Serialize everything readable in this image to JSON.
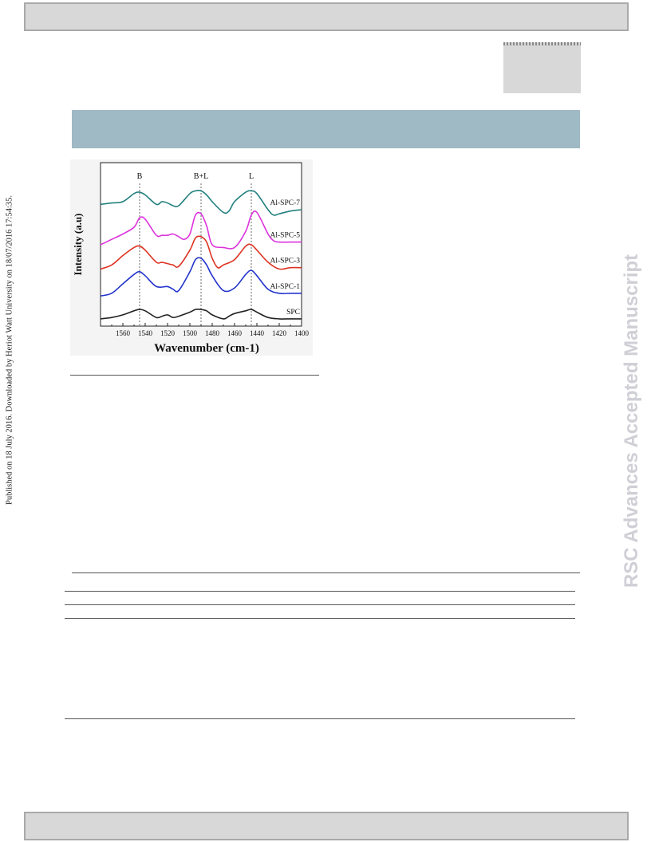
{
  "side_note": "Published on 18 July 2016. Downloaded by Heriot Watt University on 18/07/2016 17:54:35.",
  "watermark": "RSC Advances Accepted Manuscript",
  "chart_data": {
    "type": "line",
    "xlabel": "Wavenumber (cm-1)",
    "ylabel": "Intensity (a.u)",
    "xlim": [
      1580,
      1400
    ],
    "x_reversed": true,
    "x_ticks": [
      1560,
      1540,
      1520,
      1500,
      1480,
      1460,
      1440,
      1420,
      1400
    ],
    "ylim": [
      0,
      100
    ],
    "y_ticks_shown": false,
    "grid": false,
    "annotations": [
      {
        "text": "B",
        "x": 1545
      },
      {
        "text": "B+L",
        "x": 1490
      },
      {
        "text": "L",
        "x": 1445
      }
    ],
    "series": [
      {
        "name": "SPC",
        "color": "#222222",
        "x": [
          1580,
          1570,
          1560,
          1550,
          1545,
          1540,
          1530,
          1525,
          1520,
          1515,
          1510,
          1500,
          1495,
          1490,
          1485,
          1480,
          1470,
          1465,
          1460,
          1450,
          1445,
          1440,
          1430,
          1420,
          1410,
          1400
        ],
        "y": [
          3,
          4,
          6,
          9,
          10,
          9,
          4,
          5,
          6,
          4,
          5,
          8,
          10,
          10,
          9,
          6,
          3,
          5,
          7,
          9,
          10,
          8,
          4,
          3,
          3,
          3
        ]
      },
      {
        "name": "Al-SPC-1",
        "color": "#2233cc",
        "x": [
          1580,
          1570,
          1560,
          1550,
          1545,
          1540,
          1530,
          1520,
          1515,
          1510,
          1500,
          1495,
          1490,
          1485,
          1480,
          1470,
          1460,
          1450,
          1445,
          1440,
          1430,
          1420,
          1410,
          1400
        ],
        "y": [
          20,
          22,
          29,
          36,
          38,
          35,
          27,
          27,
          25,
          24,
          38,
          47,
          48,
          43,
          35,
          24,
          26,
          36,
          39,
          35,
          25,
          22,
          22,
          22
        ]
      },
      {
        "name": "Al-SPC-3",
        "color": "#dd3322",
        "x": [
          1580,
          1570,
          1560,
          1550,
          1545,
          1540,
          1530,
          1525,
          1520,
          1515,
          1510,
          1500,
          1495,
          1490,
          1485,
          1480,
          1475,
          1470,
          1460,
          1450,
          1445,
          1440,
          1430,
          1420,
          1410,
          1400
        ],
        "y": [
          40,
          43,
          50,
          56,
          57,
          54,
          45,
          45,
          44,
          43,
          42,
          54,
          63,
          64,
          60,
          48,
          41,
          43,
          47,
          57,
          58,
          54,
          45,
          40,
          41,
          41
        ]
      },
      {
        "name": "Al-SPC-5",
        "color": "#dd33dd",
        "x": [
          1580,
          1570,
          1560,
          1550,
          1545,
          1540,
          1530,
          1525,
          1520,
          1515,
          1510,
          1505,
          1500,
          1495,
          1490,
          1485,
          1480,
          1470,
          1460,
          1450,
          1445,
          1440,
          1430,
          1425,
          1420,
          1410,
          1400
        ],
        "y": [
          58,
          62,
          66,
          71,
          78,
          77,
          65,
          65,
          65,
          66,
          64,
          62,
          66,
          80,
          81,
          72,
          58,
          56,
          56,
          68,
          80,
          82,
          66,
          61,
          60,
          60,
          60
        ]
      },
      {
        "name": "Al-SPC-7",
        "color": "#227f7f",
        "x": [
          1580,
          1570,
          1560,
          1550,
          1545,
          1540,
          1530,
          1525,
          1520,
          1515,
          1510,
          1500,
          1495,
          1490,
          1485,
          1480,
          1470,
          1465,
          1460,
          1450,
          1445,
          1440,
          1430,
          1425,
          1420,
          1410,
          1400
        ],
        "y": [
          88,
          89,
          90,
          96,
          97,
          95,
          88,
          90,
          89,
          87,
          87,
          96,
          98,
          98,
          95,
          90,
          82,
          83,
          90,
          97,
          98,
          96,
          84,
          80,
          81,
          83,
          84
        ]
      }
    ]
  }
}
